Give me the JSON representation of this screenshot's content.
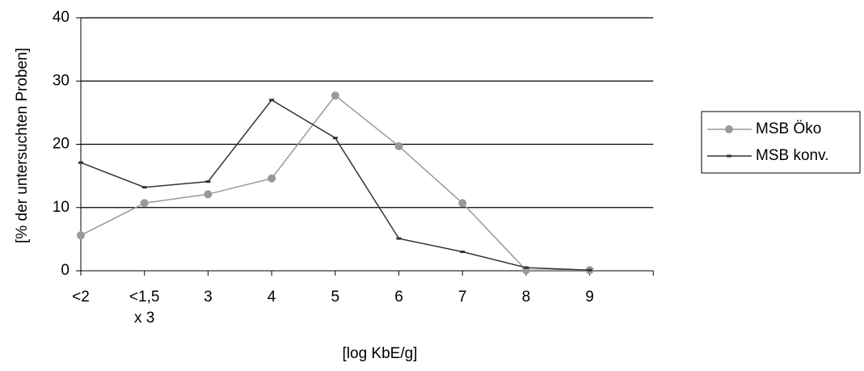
{
  "chart_data": {
    "type": "line",
    "y_label": "[% der untersuchten Proben]",
    "x_label": "[log KbE/g]",
    "categories": [
      "<2",
      "<1,5\nx 3",
      "3",
      "4",
      "5",
      "6",
      "7",
      "8",
      "9",
      null
    ],
    "series": [
      {
        "name": "MSB Öko",
        "color": "#999999",
        "marker": "circle",
        "values": [
          5.6,
          10.7,
          12.1,
          14.6,
          27.7,
          19.7,
          10.7,
          0.1,
          0.1,
          null
        ]
      },
      {
        "name": "MSB konv.",
        "color": "#333333",
        "marker": "dash",
        "values": [
          17.1,
          13.2,
          14.1,
          27.0,
          21.0,
          5.1,
          3.0,
          0.5,
          0.1,
          null
        ]
      }
    ],
    "ylim": [
      0,
      40
    ],
    "yticks": [
      0,
      10,
      20,
      30,
      40
    ],
    "grid": true,
    "legend": "right"
  }
}
